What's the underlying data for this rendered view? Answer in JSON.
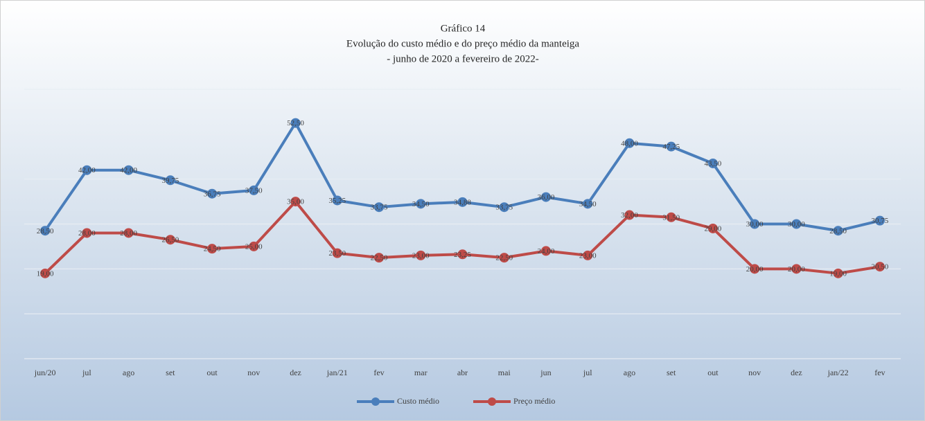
{
  "chart_data": {
    "type": "line",
    "title": "Gráfico 14",
    "subtitle": "Evolução do custo médio e do preço médio da manteiga",
    "subtitle2": "- junho de 2020 a fevereiro de 2022-",
    "categories": [
      "jun/20",
      "jul",
      "ago",
      "set",
      "out",
      "nov",
      "dez",
      "jan/21",
      "fev",
      "mar",
      "abr",
      "mai",
      "jun",
      "jul",
      "ago",
      "set",
      "out",
      "nov",
      "dez",
      "jan/22",
      "fev"
    ],
    "series": [
      {
        "name": "Custo médio",
        "color": "#4a7ebb",
        "values": [
          28.5,
          42,
          42,
          39.75,
          36.75,
          37.5,
          52.5,
          35.25,
          33.75,
          34.5,
          34.88,
          33.75,
          36,
          34.5,
          48,
          47.25,
          43.5,
          30,
          30,
          28.5,
          30.75
        ],
        "value_labels": [
          "28,50",
          "42,00",
          "42,00",
          "39,75",
          "36,75",
          "37,50",
          "52,50",
          "35,25",
          "33,75",
          "34,50",
          "34,88",
          "33,75",
          "36,00",
          "34,50",
          "48,00",
          "47,25",
          "43,50",
          "30,00",
          "30,00",
          "28,50",
          "30,75"
        ]
      },
      {
        "name": "Preço médio",
        "color": "#be4b48",
        "values": [
          19,
          28,
          28,
          26.5,
          24.5,
          25,
          35,
          23.5,
          22.5,
          23,
          23.25,
          22.5,
          24,
          23,
          32,
          31.5,
          29,
          20,
          20,
          19,
          20.5
        ],
        "value_labels": [
          "19,00",
          "28,00",
          "28,00",
          "26,50",
          "24,50",
          "25,00",
          "35,00",
          "23,50",
          "22,50",
          "23,00",
          "23,25",
          "22,50",
          "24,00",
          "23,00",
          "32,00",
          "31,50",
          "29,00",
          "20,00",
          "20,00",
          "19,00",
          "20,50"
        ]
      }
    ],
    "ylim": [
      0,
      60
    ],
    "yticks": [
      0,
      10,
      20,
      30,
      40,
      50,
      60
    ],
    "grid": true,
    "legend": "bottom"
  }
}
